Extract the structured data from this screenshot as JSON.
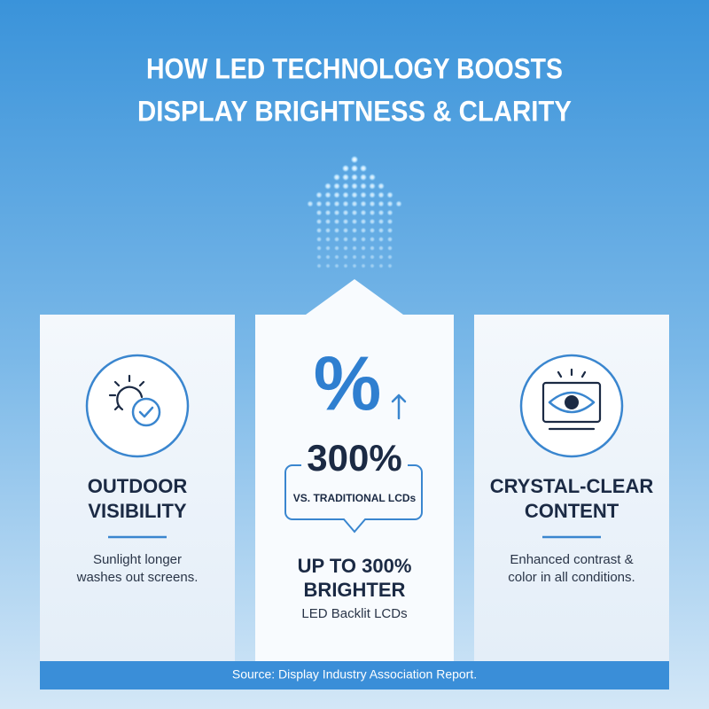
{
  "header": {
    "title_lines": [
      "HOW LED TECHNOLOGY BOOSTS",
      "DISPLAY BRIGHTNESS & CLARITY"
    ]
  },
  "cards": [
    {
      "heading_lines": [
        "OUTDOOR",
        "VISIBILITY"
      ],
      "text_lines": [
        "Sunlight longer",
        "washes out screens."
      ]
    },
    {
      "icon_text": "%",
      "stat": "300%",
      "stat_note": "VS. TRADITIONAL LCDs",
      "heading_lines": [
        "UP TO 300%",
        "BRIGHTER"
      ],
      "text_lines": [
        "LED Backlit LCDs"
      ]
    },
    {
      "heading_lines": [
        "CRYSTAL-CLEAR",
        "CONTENT"
      ],
      "text_lines": [
        "Enhanced contrast &",
        "color in all conditions."
      ]
    }
  ],
  "footer": {
    "source": "Source: Display Industry Association Report."
  }
}
